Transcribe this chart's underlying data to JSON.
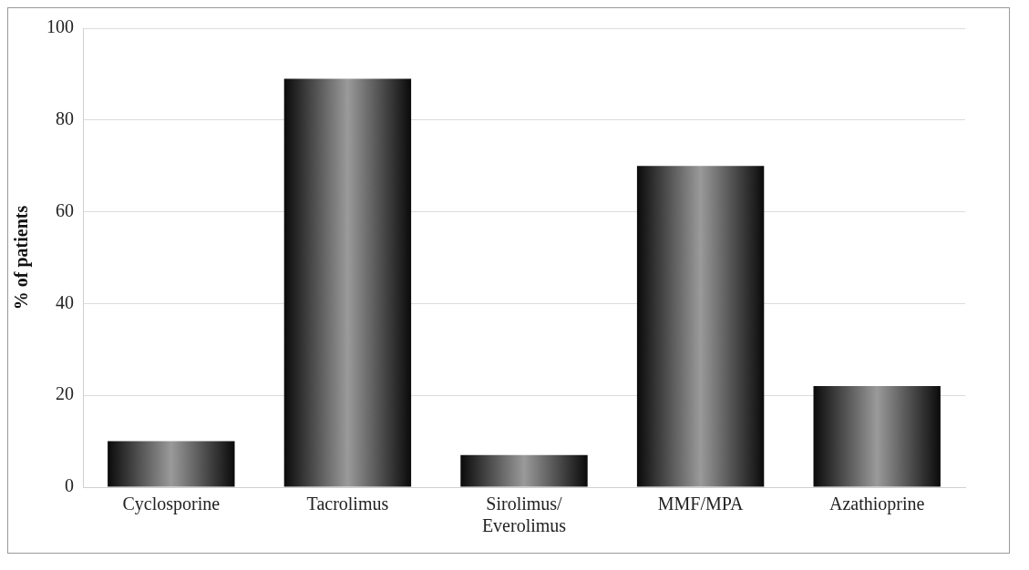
{
  "chart_data": {
    "type": "bar",
    "ylabel": "% of patients",
    "categories": [
      "Cyclosporine",
      "Tacrolimus",
      "Sirolimus/Everolimus",
      "MMF/MPA",
      "Azathioprine"
    ],
    "values": [
      10,
      89,
      7,
      70,
      22
    ],
    "color": "#9a9a9a",
    "ylim": [
      0,
      100
    ],
    "yticks": [
      0,
      20,
      40,
      60,
      80,
      100
    ],
    "grid": "y",
    "legend": false
  }
}
